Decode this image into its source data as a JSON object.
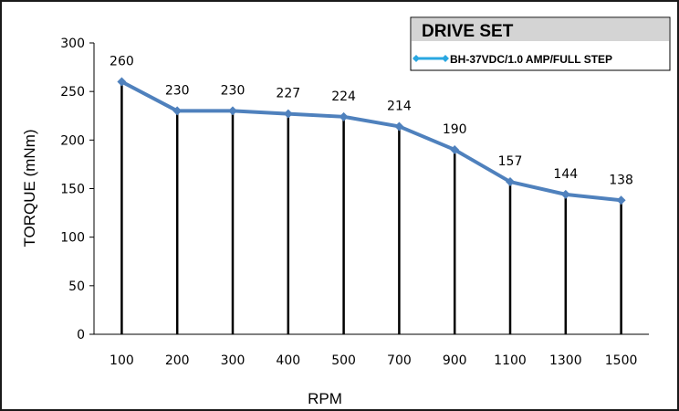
{
  "chart_data": {
    "type": "line",
    "title": "",
    "xlabel": "RPM",
    "ylabel": "TORQUE (mNm)",
    "categories": [
      "100",
      "200",
      "300",
      "400",
      "500",
      "700",
      "900",
      "1100",
      "1300",
      "1500"
    ],
    "series": [
      {
        "name": "BH-37VDC/1.0 AMP/FULL STEP",
        "values": [
          260,
          230,
          230,
          227,
          224,
          214,
          190,
          157,
          144,
          138
        ],
        "color": "#4f81bd"
      }
    ],
    "ylim": [
      0,
      300
    ],
    "yticks": [
      0,
      50,
      100,
      150,
      200,
      250,
      300
    ],
    "grid": false,
    "drop_lines": true,
    "legend": {
      "title": "DRIVE SET",
      "position": "top-right"
    },
    "data_labels": true
  }
}
